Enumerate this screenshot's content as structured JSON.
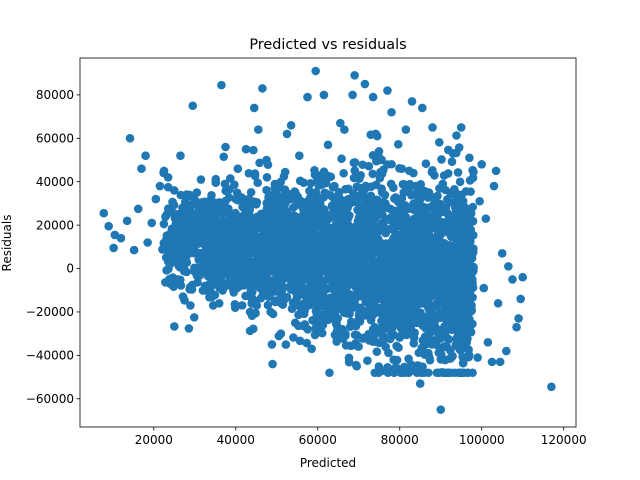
{
  "chart_data": {
    "type": "scatter",
    "title": "Predicted vs residuals",
    "xlabel": "Predicted",
    "ylabel": "Residuals",
    "xlim": [
      2000,
      123000
    ],
    "ylim": [
      -73000,
      97000
    ],
    "x_ticks": [
      20000,
      40000,
      60000,
      80000,
      100000,
      120000
    ],
    "y_ticks": [
      -60000,
      -40000,
      -20000,
      0,
      20000,
      40000,
      60000,
      80000
    ],
    "tick_labels": {
      "x": [
        "20000",
        "40000",
        "60000",
        "80000",
        "100000",
        "120000"
      ],
      "y": [
        "−60000",
        "−40000",
        "−20000",
        "0",
        "20000",
        "40000",
        "60000",
        "80000"
      ]
    },
    "marker_color": "#1f77b4",
    "grid": false,
    "series": [
      {
        "name": "",
        "points": [
          [
            7800,
            25500
          ],
          [
            9000,
            19500
          ],
          [
            10200,
            9500
          ],
          [
            10500,
            15500
          ],
          [
            12000,
            14000
          ],
          [
            13500,
            22000
          ],
          [
            14200,
            60000
          ],
          [
            15200,
            8500
          ],
          [
            16200,
            27500
          ],
          [
            17000,
            46000
          ],
          [
            18000,
            52000
          ],
          [
            18500,
            12000
          ],
          [
            19500,
            21000
          ],
          [
            20500,
            32000
          ],
          [
            21500,
            38000
          ],
          [
            22500,
            45000
          ],
          [
            23500,
            42000
          ],
          [
            24000,
            -7000
          ],
          [
            25000,
            36000
          ],
          [
            26500,
            52000
          ],
          [
            27000,
            28000
          ],
          [
            28500,
            18000
          ],
          [
            29500,
            75000
          ],
          [
            30500,
            35000
          ],
          [
            31500,
            41000
          ],
          [
            32500,
            -8000
          ],
          [
            33000,
            4500
          ],
          [
            34500,
            -17000
          ],
          [
            35500,
            29000
          ],
          [
            36500,
            84500
          ],
          [
            37500,
            56000
          ],
          [
            38500,
            10000
          ],
          [
            39500,
            -11000
          ],
          [
            40500,
            46000
          ],
          [
            41500,
            2000
          ],
          [
            42500,
            55000
          ],
          [
            43500,
            -20000
          ],
          [
            44500,
            74000
          ],
          [
            45500,
            64000
          ],
          [
            46500,
            83000
          ],
          [
            47500,
            50000
          ],
          [
            48500,
            -20000
          ],
          [
            49500,
            37000
          ],
          [
            50500,
            30000
          ],
          [
            51000,
            -30000
          ],
          [
            52500,
            62000
          ],
          [
            53500,
            66000
          ],
          [
            54500,
            -25000
          ],
          [
            55500,
            52000
          ],
          [
            56500,
            12000
          ],
          [
            57500,
            79000
          ],
          [
            58500,
            -37000
          ],
          [
            59500,
            91000
          ],
          [
            60500,
            -11000
          ],
          [
            61500,
            80000
          ],
          [
            62500,
            57000
          ],
          [
            63500,
            29000
          ],
          [
            64500,
            -30000
          ],
          [
            65500,
            67000
          ],
          [
            66500,
            64000
          ],
          [
            67500,
            -5000
          ],
          [
            68500,
            80000
          ],
          [
            69000,
            89000
          ],
          [
            69500,
            -45000
          ],
          [
            70500,
            37000
          ],
          [
            71500,
            85000
          ],
          [
            72500,
            -12000
          ],
          [
            73500,
            79000
          ],
          [
            74500,
            61000
          ],
          [
            75500,
            -47000
          ],
          [
            76500,
            30000
          ],
          [
            77000,
            82000
          ],
          [
            78000,
            72000
          ],
          [
            78500,
            -42000
          ],
          [
            79500,
            -6000
          ],
          [
            80500,
            46000
          ],
          [
            81500,
            64000
          ],
          [
            82000,
            -30000
          ],
          [
            83000,
            77000
          ],
          [
            84000,
            21000
          ],
          [
            85000,
            -53000
          ],
          [
            85500,
            74000
          ],
          [
            86500,
            9000
          ],
          [
            87000,
            -39000
          ],
          [
            88000,
            65000
          ],
          [
            88500,
            -25000
          ],
          [
            89500,
            -48000
          ],
          [
            90000,
            -65000
          ],
          [
            90500,
            39000
          ],
          [
            91500,
            17000
          ],
          [
            92500,
            -14000
          ],
          [
            93000,
            53000
          ],
          [
            94000,
            -33000
          ],
          [
            95000,
            65000
          ],
          [
            95500,
            23000
          ],
          [
            96500,
            -23000
          ],
          [
            97000,
            51000
          ],
          [
            98000,
            0
          ],
          [
            99000,
            -41000
          ],
          [
            99500,
            31000
          ],
          [
            100000,
            48000
          ],
          [
            100500,
            -9000
          ],
          [
            101000,
            23000
          ],
          [
            101500,
            -34000
          ],
          [
            102500,
            -43000
          ],
          [
            103000,
            38000
          ],
          [
            103500,
            45000
          ],
          [
            104000,
            -16000
          ],
          [
            104500,
            -43000
          ],
          [
            105000,
            7000
          ],
          [
            106000,
            -38000
          ],
          [
            106500,
            1000
          ],
          [
            107500,
            -5000
          ],
          [
            108500,
            -27000
          ],
          [
            109000,
            -23000
          ],
          [
            109500,
            -14000
          ],
          [
            110000,
            -4000
          ],
          [
            117000,
            -54500
          ]
        ],
        "dense_region": "A very dense overlapping cloud of points spans predicted ~20000–100000 and residuals ~-45000–60000."
      }
    ]
  }
}
